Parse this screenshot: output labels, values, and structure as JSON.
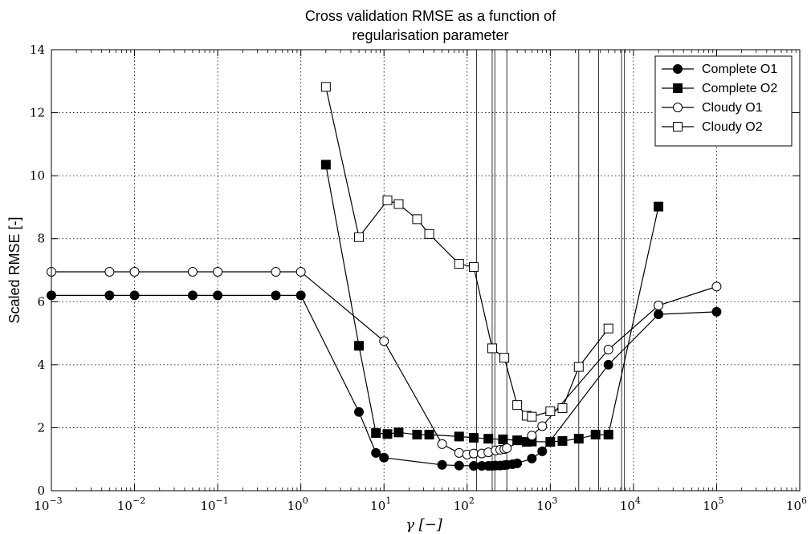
{
  "chart_data": {
    "type": "line",
    "title_lines": [
      "Cross validation RMSE as a function of",
      "regularisation parameter"
    ],
    "xlabel": "γ [−]",
    "ylabel": "Scaled RMSE [-]",
    "xscale": "log",
    "xlim": [
      0.001,
      1000000
    ],
    "ylim": [
      0,
      14
    ],
    "grid": true,
    "legend_position": "top-right",
    "x_tick_labels": [
      {
        "base": "10",
        "exp": "−3"
      },
      {
        "base": "10",
        "exp": "−2"
      },
      {
        "base": "10",
        "exp": "−1"
      },
      {
        "base": "10",
        "exp": "0"
      },
      {
        "base": "10",
        "exp": "1"
      },
      {
        "base": "10",
        "exp": "2"
      },
      {
        "base": "10",
        "exp": "3"
      },
      {
        "base": "10",
        "exp": "4"
      },
      {
        "base": "10",
        "exp": "5"
      },
      {
        "base": "10",
        "exp": "6"
      }
    ],
    "y_tick_labels": [
      "0",
      "2",
      "4",
      "6",
      "8",
      "10",
      "12",
      "14"
    ],
    "vertical_lines_x": [
      130,
      200,
      215,
      300,
      2200,
      3800,
      7200,
      7800
    ],
    "series": [
      {
        "name": "Complete O1",
        "marker": "circle",
        "filled": true,
        "x": [
          0.001,
          0.005,
          0.01,
          0.05,
          0.1,
          0.5,
          1,
          5,
          8,
          10,
          50,
          80,
          120,
          150,
          180,
          200,
          220,
          250,
          280,
          300,
          350,
          400,
          600,
          800,
          5000,
          20000,
          100000
        ],
        "y": [
          6.2,
          6.2,
          6.2,
          6.2,
          6.2,
          6.2,
          6.2,
          2.5,
          1.2,
          1.05,
          0.82,
          0.8,
          0.79,
          0.79,
          0.79,
          0.79,
          0.8,
          0.8,
          0.81,
          0.82,
          0.84,
          0.87,
          1.02,
          1.25,
          4.0,
          5.6,
          5.68
        ]
      },
      {
        "name": "Complete O2",
        "marker": "square",
        "filled": true,
        "x": [
          2,
          5,
          8,
          11,
          15,
          25,
          35,
          80,
          120,
          180,
          270,
          400,
          520,
          600,
          1000,
          1400,
          2200,
          3500,
          5000,
          20000
        ],
        "y": [
          10.35,
          4.6,
          1.83,
          1.8,
          1.85,
          1.78,
          1.78,
          1.72,
          1.68,
          1.65,
          1.63,
          1.6,
          1.55,
          1.56,
          1.55,
          1.58,
          1.65,
          1.78,
          1.78,
          9.02
        ]
      },
      {
        "name": "Cloudy O1",
        "marker": "circle",
        "filled": false,
        "x": [
          0.001,
          0.005,
          0.01,
          0.05,
          0.1,
          0.5,
          1,
          10,
          50,
          80,
          100,
          120,
          150,
          180,
          220,
          250,
          280,
          300,
          600,
          800,
          5000,
          20000,
          100000
        ],
        "y": [
          6.95,
          6.95,
          6.95,
          6.95,
          6.95,
          6.95,
          6.95,
          4.75,
          1.48,
          1.2,
          1.15,
          1.18,
          1.18,
          1.22,
          1.28,
          1.3,
          1.32,
          1.35,
          1.75,
          2.05,
          4.48,
          5.88,
          6.48
        ]
      },
      {
        "name": "Cloudy O2",
        "marker": "square",
        "filled": false,
        "x": [
          2,
          5,
          11,
          15,
          25,
          35,
          80,
          120,
          200,
          280,
          400,
          520,
          600,
          1000,
          1400,
          2200,
          5000
        ],
        "y": [
          12.82,
          8.05,
          9.22,
          9.1,
          8.62,
          8.15,
          7.2,
          7.1,
          4.52,
          4.22,
          2.72,
          2.38,
          2.35,
          2.52,
          2.62,
          3.93,
          5.15
        ]
      }
    ]
  }
}
